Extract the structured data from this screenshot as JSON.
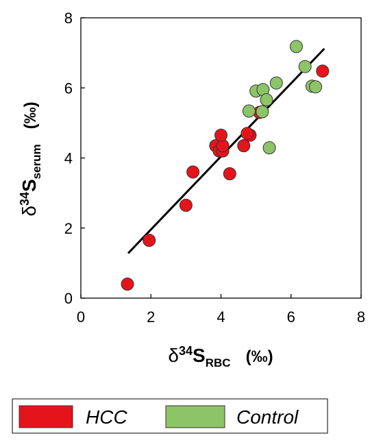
{
  "chart_data": {
    "type": "scatter",
    "xlabel": {
      "prefix": "δ",
      "sup": "34",
      "main": "S",
      "sub": "RBC",
      "unit": "(‰)"
    },
    "ylabel": {
      "prefix": "δ",
      "sup": "34",
      "main": "S",
      "sub": "serum",
      "unit": "(‰)"
    },
    "xlim": [
      0,
      8
    ],
    "ylim": [
      0,
      8
    ],
    "xticks": [
      0,
      2,
      4,
      6,
      8
    ],
    "yticks": [
      0,
      2,
      4,
      6,
      8
    ],
    "series": [
      {
        "name": "HCC",
        "color": "#e5141b",
        "x": [
          1.33,
          1.95,
          3.0,
          3.2,
          4.25,
          3.85,
          3.95,
          4.05,
          4.05,
          4.0,
          4.65,
          4.83,
          4.75,
          5.1,
          6.9
        ],
        "values": [
          0.4,
          1.65,
          2.65,
          3.6,
          3.55,
          4.35,
          4.2,
          4.2,
          4.35,
          4.65,
          4.35,
          4.65,
          4.7,
          5.3,
          6.48
        ]
      },
      {
        "name": "Control",
        "color": "#8cc466",
        "x": [
          6.15,
          6.4,
          5.58,
          5.0,
          5.2,
          5.3,
          4.8,
          5.18,
          5.38,
          6.6,
          6.7
        ],
        "values": [
          7.18,
          6.61,
          6.14,
          5.91,
          5.95,
          5.66,
          5.34,
          5.32,
          4.29,
          6.05,
          6.03
        ]
      }
    ],
    "fit_line": {
      "color": "#000000",
      "x": [
        1.35,
        6.95
      ],
      "values": [
        1.28,
        7.12
      ]
    }
  }
}
